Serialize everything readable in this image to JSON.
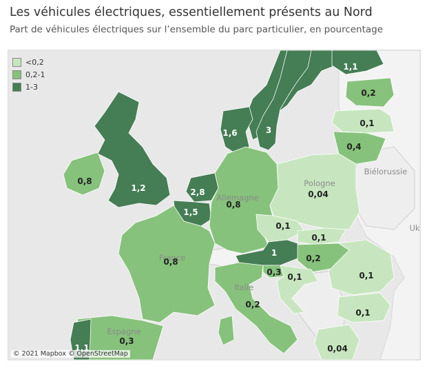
{
  "header": {
    "title": "Les véhicules électriques, essentiellement présents au Nord",
    "subtitle": "Part de véhicules électriques sur l’ensemble du parc particulier, en pourcentage"
  },
  "legend": {
    "items": [
      {
        "label": "<0,2",
        "color": "#c7e6bf"
      },
      {
        "label": "0,2-1",
        "color": "#86c27b"
      },
      {
        "label": "1-3",
        "color": "#457d55"
      }
    ]
  },
  "map": {
    "attribution": "© 2021 Mapbox © OpenStreetMap",
    "places": {
      "bielorussie": "Biélorussie",
      "pologne": "Pologne",
      "allemagne": "Allemagne",
      "france": "France",
      "italie": "Italie",
      "espagne": "Espagne",
      "uk": "Uk"
    },
    "values": {
      "norvege": "1,1",
      "estonie": "0,2",
      "lettonie": "0,1",
      "lituanie": "0,4",
      "danemark": "1,6",
      "suede": "3",
      "irlande": "0,8",
      "royaume_uni": "1,2",
      "pays_bas": "2,8",
      "belgique": "1,5",
      "allemagne": "0,8",
      "pologne": "0,04",
      "tchequie": "0,1",
      "slovaquie": "0,1",
      "autriche": "1",
      "hongrie": "0,2",
      "france": "0,8",
      "slovenie": "0,3",
      "croatie": "0,1",
      "roumanie": "0,1",
      "italie": "0,2",
      "bulgarie": "0,1",
      "espagne": "0,3",
      "portugal": "1,1",
      "grece": "0,04"
    }
  }
}
